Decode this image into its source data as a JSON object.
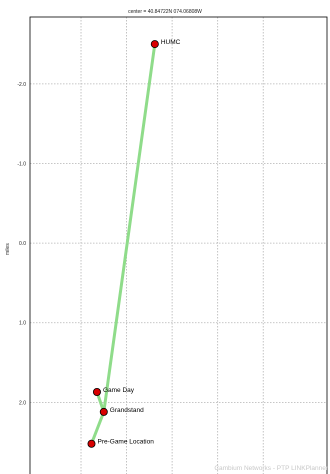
{
  "chart_data": {
    "type": "scatter",
    "title": "center = 40.84722N 074.06808W",
    "ylabel": "miles",
    "ylim": [
      -2.84,
      2.9
    ],
    "xlim": [
      -2.12,
      4.4
    ],
    "y_tick_labels": [
      "-2.0",
      "-1.0",
      "0.0",
      "1.0",
      "2.0"
    ],
    "y_ticks": [
      -2.0,
      -1.0,
      0.0,
      1.0,
      2.0
    ],
    "x_gridlines": [
      -1.0,
      0.0,
      1.0,
      2.0,
      3.0
    ],
    "grid": true,
    "points": [
      {
        "label": "HUMC",
        "x": 0.62,
        "y": -2.5
      },
      {
        "label": "Game Day",
        "x": -0.65,
        "y": 1.87
      },
      {
        "label": "Grandstand",
        "x": -0.5,
        "y": 2.12
      },
      {
        "label": "Pre-Game Location",
        "x": -0.77,
        "y": 2.52
      }
    ],
    "links": [
      {
        "from": "HUMC",
        "to": "Grandstand"
      },
      {
        "from": "Game Day",
        "to": "Grandstand"
      },
      {
        "from": "Grandstand",
        "to": "Pre-Game Location"
      }
    ],
    "colors": {
      "link": "#8fdc8a",
      "marker": "#d80000",
      "grid": "#b4b4b4",
      "axis": "#000000"
    },
    "footer": "Cambium Networks - PTP LINKPlanner"
  }
}
